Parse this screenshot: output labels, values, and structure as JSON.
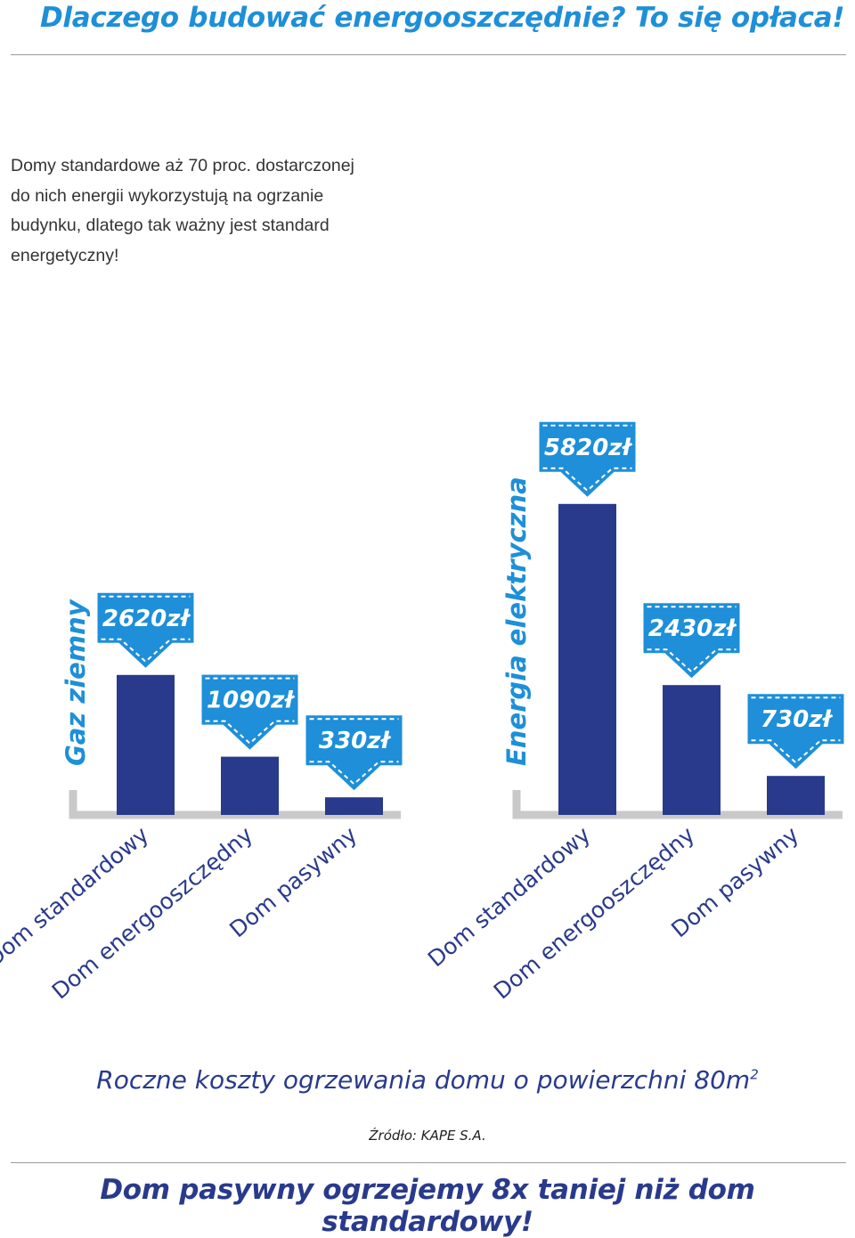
{
  "header": {
    "title": "Dlaczego budować energooszczędnie? To się opłaca!",
    "intro_lines": [
      "Domy standardowe aż 70 proc. dostarczonej",
      "do nich energii wykorzystują na ogrzanie",
      "budynku, dlatego tak ważny jest standard",
      "energetyczny!"
    ]
  },
  "chart_data": {
    "type": "bar",
    "groups": [
      {
        "name": "Gaz ziemny",
        "categories": [
          "Dom standardowy",
          "Dom energooszczędny",
          "Dom pasywny"
        ],
        "values": [
          2620,
          1090,
          330
        ],
        "labels": [
          "2620zł",
          "1090zł",
          "330zł"
        ]
      },
      {
        "name": "Energia elektryczna",
        "categories": [
          "Dom standardowy",
          "Dom energooszczędny",
          "Dom pasywny"
        ],
        "values": [
          5820,
          2430,
          730
        ],
        "labels": [
          "5820zł",
          "2430zł",
          "730zł"
        ]
      }
    ],
    "title": "Roczne koszty ogrzewania domu o powierzchni 80m2",
    "unit": "zł",
    "colors": {
      "bar": "#293a8c",
      "badge": "#1e8fd8",
      "axis": "#c9c9c9"
    }
  },
  "subtitle": {
    "text": "Roczne koszty ogrzewania domu o powierzchni 80m",
    "superscript": "2"
  },
  "source": "Źródło: KAPE S.A.",
  "footer": "Dom pasywny ogrzejemy 8x taniej niż dom standardowy!",
  "colors": {
    "accent": "#1e8fd8",
    "navy": "#293a8c"
  }
}
